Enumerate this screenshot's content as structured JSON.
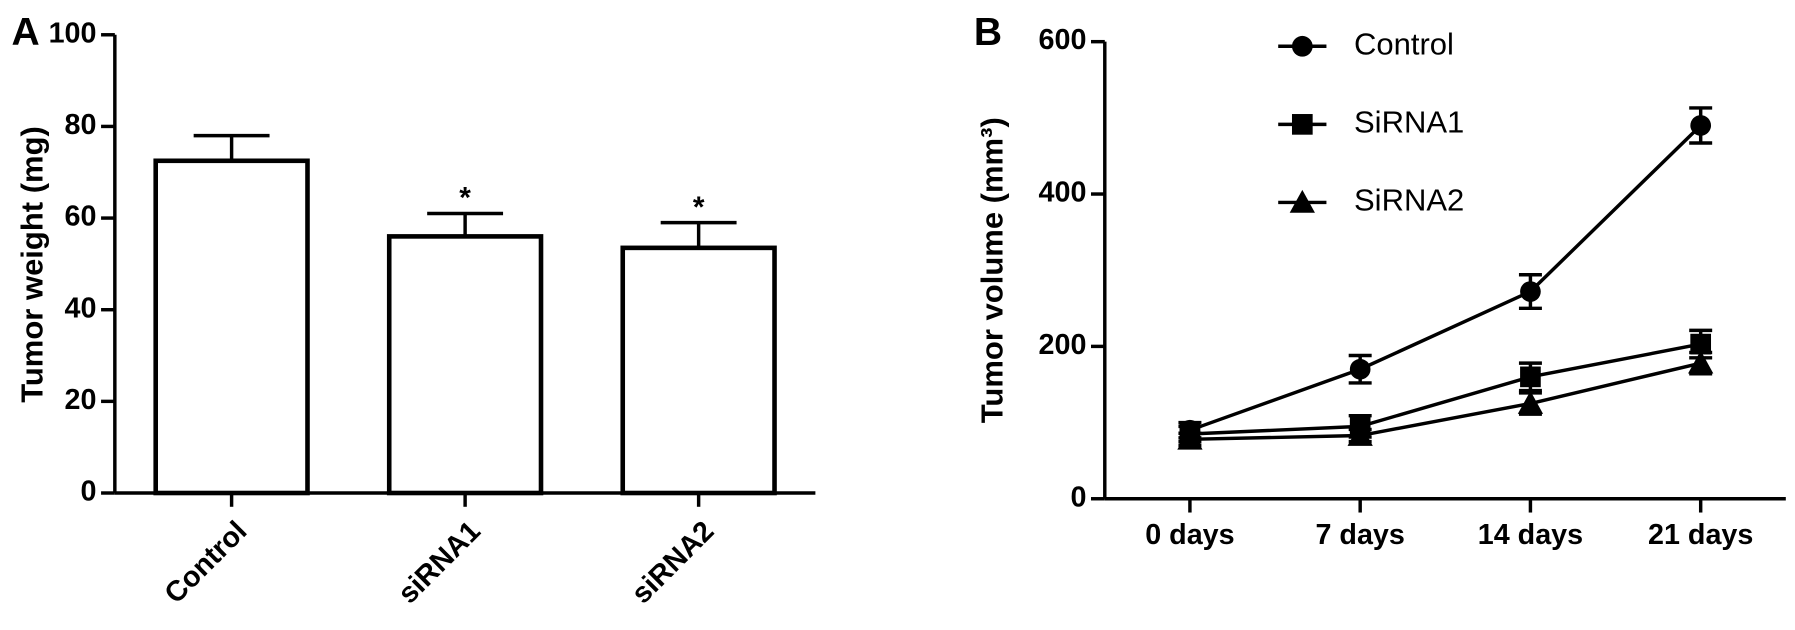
{
  "chart_data": [
    {
      "type": "bar",
      "panel": "A",
      "ylabel": "Tumor weight (mg)",
      "categories": [
        "Control",
        "siRNA1",
        "siRNA2"
      ],
      "values": [
        72.5,
        56,
        53.5
      ],
      "errors": [
        5.5,
        5,
        5.5
      ],
      "annotations": [
        {
          "text": "*",
          "category": "siRNA1"
        },
        {
          "text": "*",
          "category": "siRNA2"
        }
      ],
      "color": "#ffffff",
      "ylim": [
        0,
        100
      ],
      "yticks": [
        0,
        20,
        40,
        60,
        80,
        100
      ]
    },
    {
      "type": "line",
      "panel": "B",
      "ylabel": "Tumor volume (mm³)",
      "categories": [
        "0 days",
        "7 days",
        "14 days",
        "21 days"
      ],
      "series": [
        {
          "name": "Control",
          "color": "#000000",
          "marker": "circle",
          "values": [
            90,
            170,
            272,
            490
          ],
          "errors": [
            10,
            18,
            22,
            23
          ]
        },
        {
          "name": "SiRNA1",
          "color": "#000000",
          "marker": "square",
          "values": [
            85,
            95,
            160,
            203
          ],
          "errors": [
            10,
            14,
            18,
            18
          ]
        },
        {
          "name": "SiRNA2",
          "color": "#000000",
          "marker": "triangle",
          "values": [
            78,
            83,
            125,
            178
          ],
          "errors": [
            8,
            8,
            14,
            14
          ]
        }
      ],
      "legend": "upper-center",
      "ylim": [
        0,
        600
      ],
      "yticks": [
        0,
        200,
        400,
        600
      ]
    }
  ]
}
